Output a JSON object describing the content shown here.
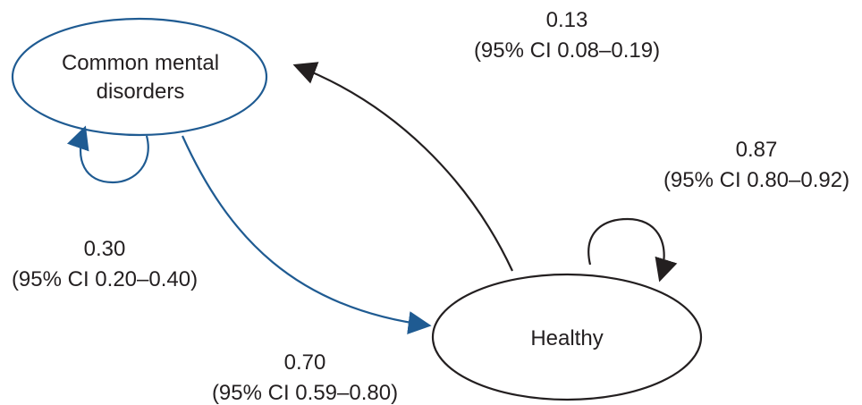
{
  "colors": {
    "ink": "#231f20",
    "blue": "#1f5b92"
  },
  "nodes": {
    "common_mental_disorders": {
      "line1": "Common mental",
      "line2": "disorders"
    },
    "healthy": {
      "label": "Healthy"
    }
  },
  "edges": {
    "cmd_to_healthy": {
      "value": "0.70",
      "ci": "(95% CI 0.59–0.80)"
    },
    "healthy_to_cmd": {
      "value": "0.13",
      "ci": "(95% CI 0.08–0.19)"
    },
    "cmd_self": {
      "value": "0.30",
      "ci": "(95% CI 0.20–0.40)"
    },
    "healthy_self": {
      "value": "0.87",
      "ci": "(95% CI 0.80–0.92)"
    }
  }
}
